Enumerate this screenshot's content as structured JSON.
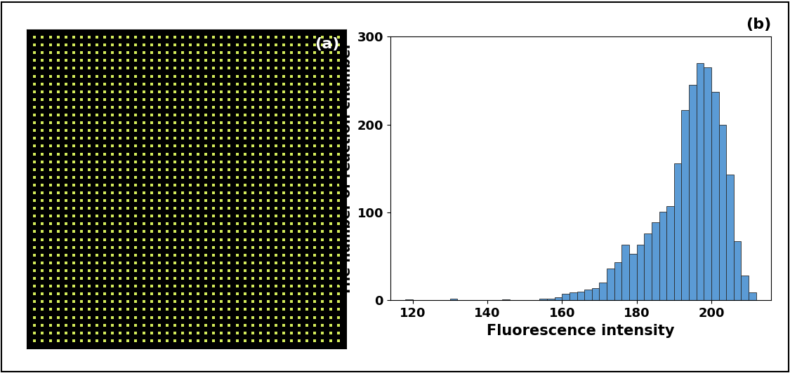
{
  "chart_data": [
    {
      "type": "image",
      "label": "(a)",
      "rows": 40,
      "columns": 40,
      "color": "#d4ec5a",
      "tick_labels": false
    },
    {
      "type": "histogram",
      "label": "(b)",
      "x_label": "Fluorescence intensity",
      "y_label": "The number of reaction chamber",
      "bins": [
        118,
        120,
        122,
        124,
        126,
        128,
        130,
        132,
        134,
        136,
        138,
        140,
        142,
        144,
        146,
        148,
        150,
        152,
        154,
        156,
        158,
        160,
        162,
        164,
        166,
        168,
        170,
        172,
        174,
        176,
        178,
        180,
        182,
        184,
        186,
        188,
        190,
        192,
        194,
        196,
        198,
        200,
        202,
        204,
        206,
        208,
        210,
        212
      ],
      "counts": [
        1,
        0,
        0,
        0,
        0,
        0,
        2,
        0,
        0,
        0,
        0,
        0,
        0,
        1,
        0,
        0,
        0,
        0,
        2,
        2,
        3,
        7,
        9,
        10,
        12,
        14,
        20,
        36,
        43,
        63,
        53,
        63,
        76,
        89,
        101,
        107,
        156,
        216,
        245,
        270,
        265,
        237,
        200,
        143,
        67,
        28,
        9
      ],
      "color": "#5b9bd5",
      "xlim": [
        114,
        216
      ],
      "xticks": [
        120,
        140,
        160,
        180,
        200
      ],
      "ylim": [
        0,
        300
      ],
      "yticks": [
        0,
        100,
        200,
        300
      ]
    }
  ]
}
